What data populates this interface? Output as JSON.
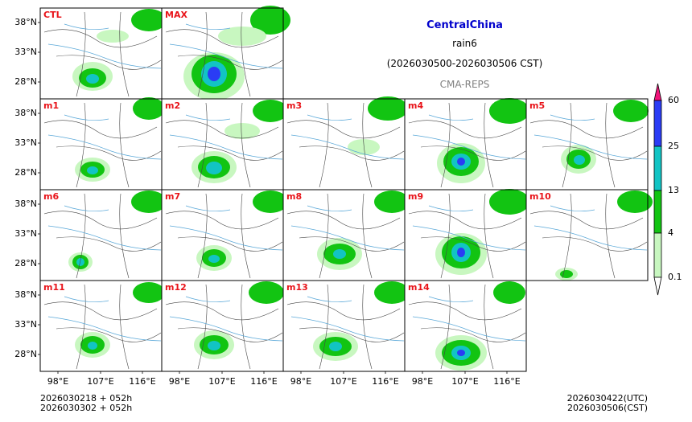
{
  "title": {
    "region": "CentralChina",
    "variable": "rain6",
    "period": "(2026030500-2026030506 CST)",
    "model": "CMA-REPS"
  },
  "panels": [
    "CTL",
    "MAX",
    "m1",
    "m2",
    "m3",
    "m4",
    "m5",
    "m6",
    "m7",
    "m8",
    "m9",
    "m10",
    "m11",
    "m12",
    "m13",
    "m14"
  ],
  "axes": {
    "lat_labels": [
      "38°N",
      "33°N",
      "28°N"
    ],
    "lon_labels": [
      "98°E",
      "107°E",
      "116°E"
    ]
  },
  "colorbar": {
    "levels": [
      "60",
      "25",
      "13",
      "4",
      "0.1"
    ],
    "colors": [
      "#f0147a",
      "#2a3cf5",
      "#12c4c4",
      "#12c412",
      "#c8f7c0"
    ]
  },
  "footer": {
    "init_utc": "2026030218  +  052h",
    "init_cst": "2026030302  +  052h",
    "valid_utc": "2026030422(UTC)",
    "valid_cst": "2026030506(CST)"
  }
}
